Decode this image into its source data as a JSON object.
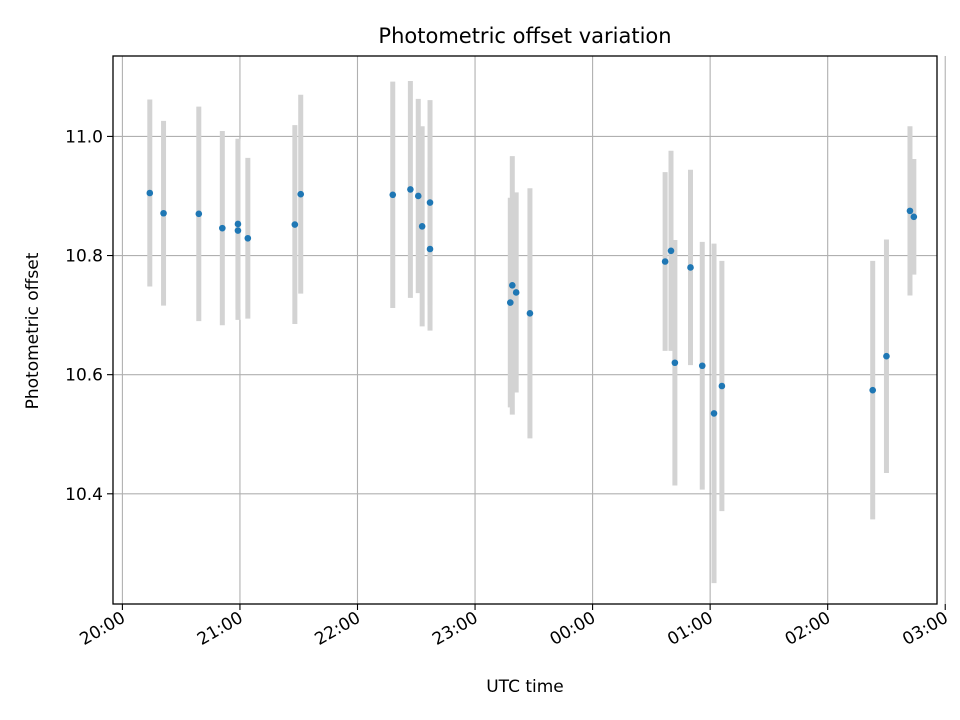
{
  "chart_data": {
    "type": "scatter",
    "title": "Photometric offset variation",
    "xlabel": "UTC time",
    "ylabel": "Photometric offset",
    "x_unit": "hours since 20:00 UTC",
    "xlim": [
      -0.08,
      6.93
    ],
    "ylim": [
      10.215,
      11.135
    ],
    "xticks": [
      {
        "value": 0,
        "label": "20:00"
      },
      {
        "value": 1,
        "label": "21:00"
      },
      {
        "value": 2,
        "label": "22:00"
      },
      {
        "value": 3,
        "label": "23:00"
      },
      {
        "value": 4,
        "label": "00:00"
      },
      {
        "value": 5,
        "label": "01:00"
      },
      {
        "value": 6,
        "label": "02:00"
      },
      {
        "value": 7,
        "label": "03:00"
      }
    ],
    "yticks": [
      {
        "value": 10.4,
        "label": "10.4"
      },
      {
        "value": 10.6,
        "label": "10.6"
      },
      {
        "value": 10.8,
        "label": "10.8"
      },
      {
        "value": 11.0,
        "label": "11.0"
      }
    ],
    "grid": true,
    "colors": {
      "marker": "#1f77b4",
      "errorbar": "#d3d3d3",
      "grid": "#b0b0b0",
      "axes": "#000000"
    },
    "series": [
      {
        "name": "offset",
        "points": [
          {
            "x": 0.233,
            "y": 10.905,
            "err": 0.157
          },
          {
            "x": 0.35,
            "y": 10.871,
            "err": 0.155
          },
          {
            "x": 0.65,
            "y": 10.87,
            "err": 0.18
          },
          {
            "x": 0.85,
            "y": 10.846,
            "err": 0.163
          },
          {
            "x": 0.983,
            "y": 10.853,
            "err": 0.143
          },
          {
            "x": 0.983,
            "y": 10.842,
            "err": 0.15
          },
          {
            "x": 1.067,
            "y": 10.829,
            "err": 0.135
          },
          {
            "x": 1.467,
            "y": 10.852,
            "err": 0.167
          },
          {
            "x": 1.517,
            "y": 10.903,
            "err": 0.167
          },
          {
            "x": 2.3,
            "y": 10.902,
            "err": 0.19
          },
          {
            "x": 2.45,
            "y": 10.911,
            "err": 0.182
          },
          {
            "x": 2.517,
            "y": 10.9,
            "err": 0.163
          },
          {
            "x": 2.55,
            "y": 10.849,
            "err": 0.168
          },
          {
            "x": 2.617,
            "y": 10.811,
            "err": 0.137
          },
          {
            "x": 2.617,
            "y": 10.889,
            "err": 0.172
          },
          {
            "x": 3.3,
            "y": 10.721,
            "err": 0.176
          },
          {
            "x": 3.317,
            "y": 10.75,
            "err": 0.217
          },
          {
            "x": 3.35,
            "y": 10.738,
            "err": 0.168
          },
          {
            "x": 3.467,
            "y": 10.703,
            "err": 0.21
          },
          {
            "x": 4.617,
            "y": 10.79,
            "err": 0.15
          },
          {
            "x": 4.667,
            "y": 10.808,
            "err": 0.168
          },
          {
            "x": 4.7,
            "y": 10.62,
            "err": 0.206
          },
          {
            "x": 4.833,
            "y": 10.78,
            "err": 0.164
          },
          {
            "x": 4.933,
            "y": 10.615,
            "err": 0.208
          },
          {
            "x": 5.033,
            "y": 10.535,
            "err": 0.285
          },
          {
            "x": 5.1,
            "y": 10.581,
            "err": 0.21
          },
          {
            "x": 6.383,
            "y": 10.574,
            "err": 0.217
          },
          {
            "x": 6.5,
            "y": 10.631,
            "err": 0.196
          },
          {
            "x": 6.7,
            "y": 10.875,
            "err": 0.142
          },
          {
            "x": 6.733,
            "y": 10.865,
            "err": 0.097
          }
        ]
      }
    ]
  }
}
